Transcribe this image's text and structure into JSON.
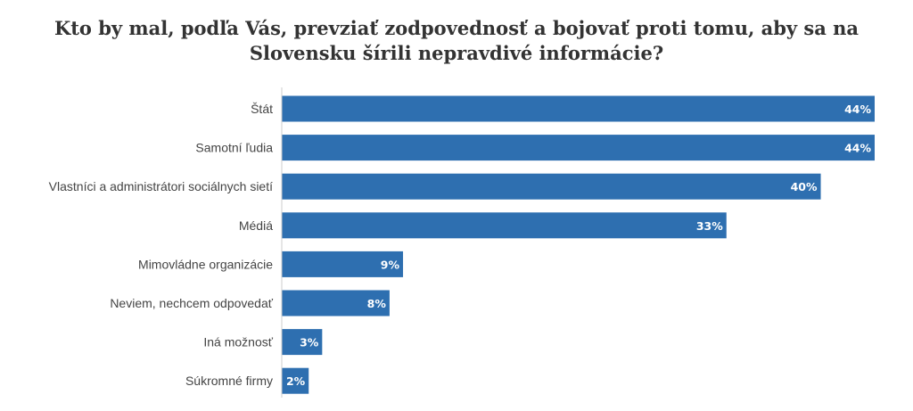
{
  "chart_data": {
    "type": "bar",
    "orientation": "horizontal",
    "title": "Kto by mal, podľa Vás, prevziať zodpovednosť a bojovať proti tomu, aby sa na Slovensku šírili nepravdivé informácie?",
    "categories": [
      "Štát",
      "Samotní ľudia",
      "Vlastníci a administrátori sociálnych sietí",
      "Médiá",
      "Mimovládne organizácie",
      "Neviem, nechcem odpovedať",
      "Iná možnosť",
      "Súkromné firmy"
    ],
    "values": [
      44,
      44,
      40,
      33,
      9,
      8,
      3,
      2
    ],
    "value_labels": [
      "44%",
      "44%",
      "40%",
      "33%",
      "9%",
      "8%",
      "3%",
      "2%"
    ],
    "unit": "%",
    "xlim": [
      0,
      44
    ],
    "bar_color": "#2e6fb0",
    "grid": false,
    "legend": "none"
  }
}
